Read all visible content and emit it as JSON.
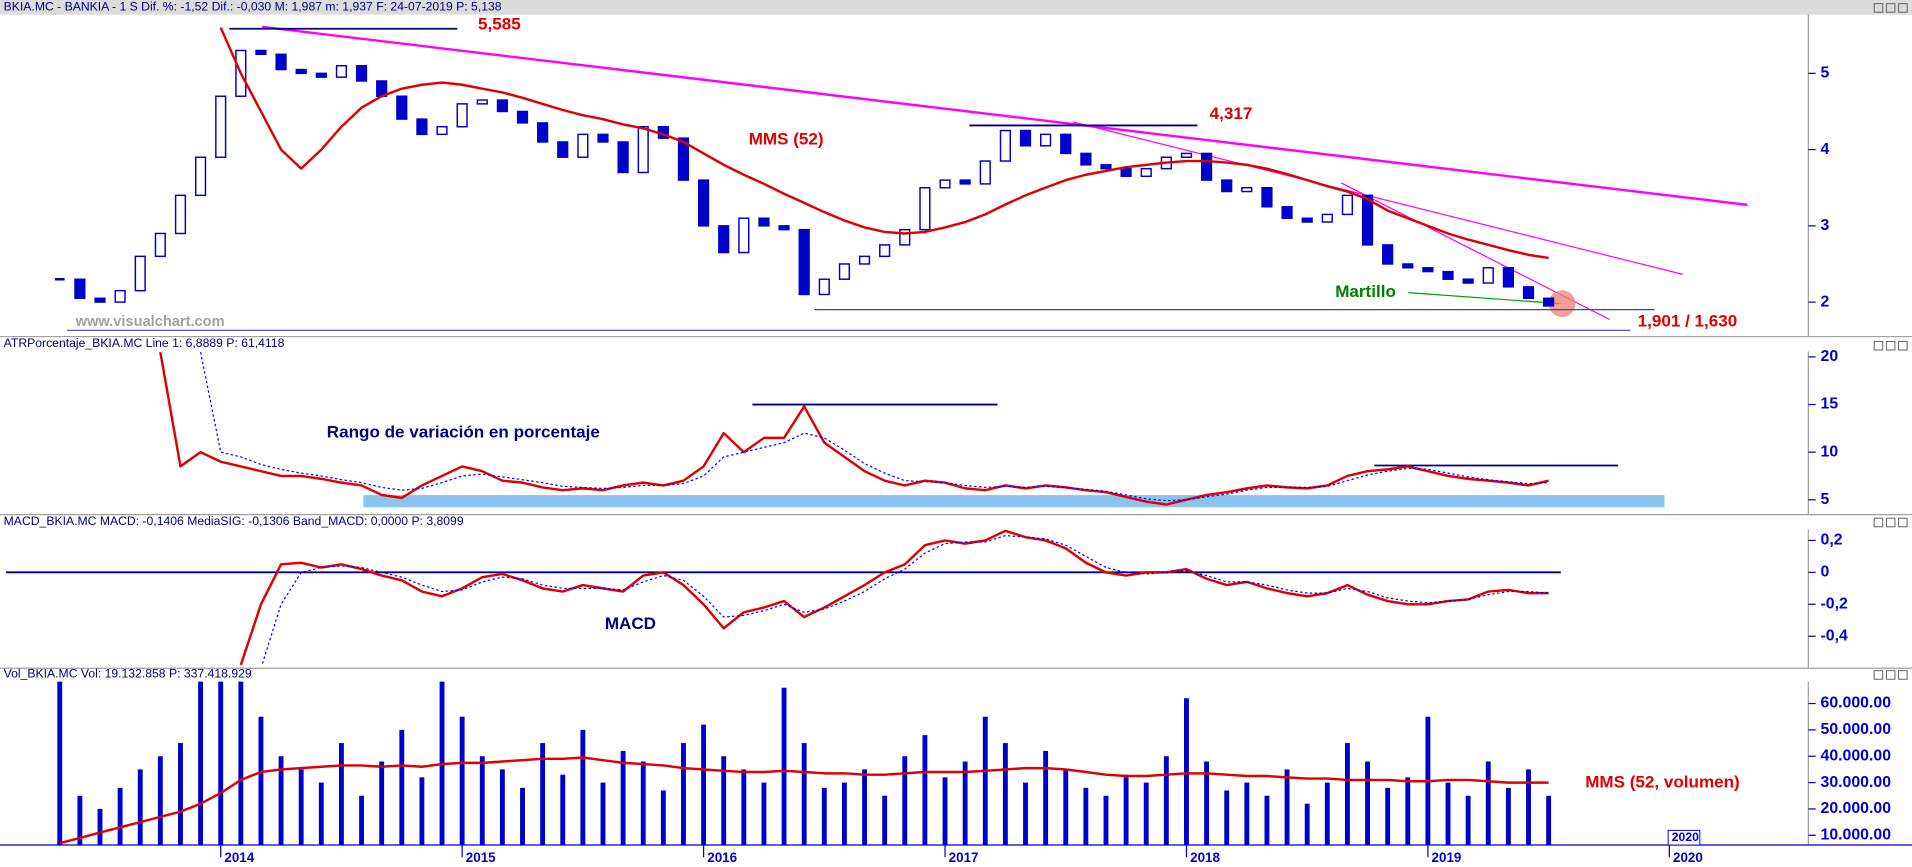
{
  "chart_data": [
    {
      "type": "candlestick",
      "header": "BKIA.MC - BANKIA - 1 S  Dif. %: -1,52  Dif.: -0,030  M: 1,987  m: 1,937  F: 24-07-2019  P: 5,138",
      "ylim": [
        1.58,
        5.77
      ],
      "yticks": [
        2,
        3,
        4,
        5
      ],
      "annotations": [
        "MMS (52)",
        "Martillo",
        "www.visualchart.com"
      ],
      "levels": [
        {
          "value": 5.585,
          "label": "5,585"
        },
        {
          "value": 4.317,
          "label": "4,317"
        }
      ],
      "support": [
        1.901,
        1.63
      ],
      "support_label": "1,901 / 1,630",
      "series": [
        {
          "type": "candlestick",
          "color": "#0000cc",
          "values": [
            2.3,
            2.05,
            2.0,
            2.15,
            2.6,
            2.9,
            3.4,
            3.9,
            4.7,
            5.3,
            5.25,
            5.05,
            5.0,
            4.95,
            5.1,
            4.9,
            4.7,
            4.4,
            4.2,
            4.3,
            4.6,
            4.65,
            4.5,
            4.35,
            4.1,
            3.9,
            4.2,
            4.1,
            3.7,
            4.3,
            4.15,
            3.6,
            3.0,
            2.65,
            3.1,
            3.0,
            2.95,
            2.1,
            2.3,
            2.5,
            2.6,
            2.75,
            2.95,
            3.5,
            3.6,
            3.55,
            3.85,
            4.25,
            4.05,
            4.2,
            3.95,
            3.8,
            3.75,
            3.65,
            3.75,
            3.9,
            3.95,
            3.6,
            3.45,
            3.5,
            3.25,
            3.1,
            3.05,
            3.15,
            3.4,
            2.75,
            2.5,
            2.45,
            2.4,
            2.3,
            2.25,
            2.45,
            2.2,
            2.05,
            1.95,
            null,
            null,
            null,
            null,
            null,
            null,
            null,
            null,
            null,
            null,
            null,
            null
          ]
        },
        {
          "type": "line",
          "color": "#e00000",
          "values": [
            null,
            null,
            null,
            null,
            null,
            null,
            null,
            null,
            5.6,
            5.0,
            4.5,
            4.0,
            3.75,
            4.0,
            4.3,
            4.55,
            4.7,
            4.8,
            4.85,
            4.88,
            4.85,
            4.8,
            4.75,
            4.68,
            4.6,
            4.52,
            4.45,
            4.4,
            4.33,
            4.28,
            4.2,
            4.1,
            3.95,
            3.8,
            3.67,
            3.55,
            3.42,
            3.3,
            3.18,
            3.07,
            2.98,
            2.92,
            2.9,
            2.92,
            2.98,
            3.05,
            3.15,
            3.28,
            3.4,
            3.5,
            3.6,
            3.67,
            3.72,
            3.77,
            3.8,
            3.83,
            3.85,
            3.85,
            3.83,
            3.8,
            3.75,
            3.68,
            3.6,
            3.52,
            3.45,
            3.35,
            3.2,
            3.1,
            3.0,
            2.9,
            2.82,
            2.75,
            2.68,
            2.62,
            2.58,
            null,
            null,
            null,
            null,
            null,
            null,
            null,
            null,
            null,
            null,
            null,
            null
          ]
        }
      ]
    },
    {
      "type": "line",
      "header": "ATRPorcentaje_BKIA.MC  Line 1: 6,8889  P: 61,4118",
      "ylim": [
        3.7,
        20.6
      ],
      "yticks": [
        5,
        10,
        15,
        20
      ],
      "annotations": [
        "Rango de variación en porcentaje"
      ],
      "levels": [
        15,
        8.6
      ],
      "series": [
        {
          "type": "line",
          "color": "#e00000",
          "values": [
            null,
            null,
            null,
            null,
            null,
            20.5,
            8.5,
            10,
            9,
            8.5,
            8,
            7.5,
            7.5,
            7.2,
            6.8,
            6.5,
            5.5,
            5.2,
            6.5,
            7.5,
            8.5,
            8,
            7,
            6.8,
            6.3,
            6,
            6.2,
            6,
            6.5,
            6.8,
            6.5,
            7,
            8.5,
            12,
            10,
            11.5,
            11.5,
            14.8,
            11,
            9.5,
            8,
            7,
            6.5,
            7,
            6.8,
            6.2,
            6,
            6.5,
            6.2,
            6.5,
            6.3,
            6,
            5.8,
            5.3,
            4.8,
            4.5,
            5,
            5.5,
            5.8,
            6.2,
            6.5,
            6.3,
            6.2,
            6.5,
            7.5,
            8,
            8.2,
            8.5,
            8,
            7.5,
            7.2,
            7,
            6.8,
            6.5,
            7,
            null,
            null,
            null,
            null,
            null,
            null,
            null,
            null,
            null,
            null,
            null,
            null
          ]
        },
        {
          "type": "line",
          "color": "#0000ff",
          "style": "dotted",
          "values": [
            null,
            null,
            null,
            null,
            null,
            null,
            null,
            20.5,
            10,
            9.5,
            8.7,
            8.2,
            7.8,
            7.5,
            7.1,
            6.8,
            6.3,
            6,
            6.2,
            6.8,
            7.5,
            7.7,
            7.4,
            7.1,
            6.8,
            6.4,
            6.3,
            6.2,
            6.3,
            6.5,
            6.5,
            6.7,
            7.5,
            9.5,
            10,
            10.5,
            11,
            12,
            11.5,
            10.2,
            8.8,
            7.8,
            7,
            6.9,
            6.8,
            6.5,
            6.3,
            6.4,
            6.3,
            6.4,
            6.3,
            6.1,
            5.9,
            5.5,
            5.1,
            4.9,
            5,
            5.3,
            5.6,
            6,
            6.3,
            6.3,
            6.3,
            6.4,
            7,
            7.6,
            8,
            8.3,
            8.2,
            7.8,
            7.4,
            7.1,
            6.9,
            6.7,
            6.8,
            null,
            null,
            null,
            null,
            null,
            null,
            null,
            null,
            null,
            null,
            null,
            null
          ]
        }
      ]
    },
    {
      "type": "line",
      "header": "MACD_BKIA.MC  MACD: -0,1406  MediaSIG: -0,1306  Band_MACD: 0,0000  P: 3,8099",
      "ylim": [
        -0.585,
        0.27
      ],
      "yticks": [
        {
          "value": 0.2,
          "label": "0,2"
        },
        0,
        {
          "value": -0.2,
          "label": "-0,2"
        },
        {
          "value": -0.4,
          "label": "-0,4"
        }
      ],
      "annotations": [
        "MACD"
      ],
      "levels": [
        0
      ],
      "series": [
        {
          "type": "line",
          "color": "#e00000",
          "values": [
            null,
            null,
            null,
            null,
            null,
            null,
            null,
            null,
            null,
            -0.58,
            -0.2,
            0.05,
            0.06,
            0.03,
            0.05,
            0.02,
            -0.02,
            -0.05,
            -0.12,
            -0.15,
            -0.1,
            -0.03,
            -0.01,
            -0.05,
            -0.1,
            -0.12,
            -0.08,
            -0.1,
            -0.12,
            -0.02,
            0,
            -0.08,
            -0.2,
            -0.35,
            -0.25,
            -0.22,
            -0.18,
            -0.28,
            -0.22,
            -0.15,
            -0.08,
            0,
            0.05,
            0.17,
            0.2,
            0.18,
            0.2,
            0.26,
            0.22,
            0.2,
            0.15,
            0.06,
            0,
            -0.02,
            0,
            0,
            0.02,
            -0.04,
            -0.08,
            -0.06,
            -0.1,
            -0.13,
            -0.15,
            -0.13,
            -0.08,
            -0.14,
            -0.18,
            -0.2,
            -0.2,
            -0.18,
            -0.17,
            -0.12,
            -0.11,
            -0.13,
            -0.13,
            null,
            null,
            null,
            null,
            null,
            null,
            null,
            null,
            null,
            null,
            null,
            null
          ]
        },
        {
          "type": "line",
          "color": "#0000ff",
          "style": "dotted",
          "values": [
            null,
            null,
            null,
            null,
            null,
            null,
            null,
            null,
            null,
            null,
            -0.6,
            -0.2,
            0,
            0.03,
            0.04,
            0.03,
            0,
            -0.03,
            -0.08,
            -0.12,
            -0.11,
            -0.06,
            -0.03,
            -0.04,
            -0.08,
            -0.1,
            -0.1,
            -0.1,
            -0.11,
            -0.06,
            -0.02,
            -0.05,
            -0.15,
            -0.28,
            -0.27,
            -0.24,
            -0.2,
            -0.25,
            -0.23,
            -0.18,
            -0.12,
            -0.04,
            0.02,
            0.12,
            0.18,
            0.19,
            0.19,
            0.23,
            0.22,
            0.21,
            0.17,
            0.1,
            0.03,
            0,
            -0.01,
            0,
            0.01,
            -0.02,
            -0.06,
            -0.06,
            -0.08,
            -0.11,
            -0.13,
            -0.13,
            -0.1,
            -0.12,
            -0.16,
            -0.18,
            -0.19,
            -0.18,
            -0.17,
            -0.14,
            -0.12,
            -0.12,
            -0.13,
            null,
            null,
            null,
            null,
            null,
            null,
            null,
            null,
            null,
            null,
            null,
            null
          ]
        }
      ]
    },
    {
      "type": "bar",
      "header": "Vol_BKIA.MC  Vol: 19.132.858  P: 337.418.929",
      "ylim": [
        6300000,
        68300000
      ],
      "yticks": [
        {
          "value": 10000000,
          "label": "10.000.00"
        },
        {
          "value": 20000000,
          "label": "20.000.00"
        },
        {
          "value": 30000000,
          "label": "30.000.00"
        },
        {
          "value": 40000000,
          "label": "40.000.00"
        },
        {
          "value": 50000000,
          "label": "50.000.00"
        },
        {
          "value": 60000000,
          "label": "60.000.00"
        }
      ],
      "annotations": [
        "MMS (52, volumen)"
      ],
      "cursor_label": "2020",
      "categories": [
        null,
        null,
        null,
        null,
        null,
        null,
        null,
        null,
        "2014",
        null,
        null,
        null,
        null,
        null,
        null,
        null,
        null,
        null,
        null,
        null,
        "2015",
        null,
        null,
        null,
        null,
        null,
        null,
        null,
        null,
        null,
        null,
        null,
        "2016",
        null,
        null,
        null,
        null,
        null,
        null,
        null,
        null,
        null,
        null,
        null,
        "2017",
        null,
        null,
        null,
        null,
        null,
        null,
        null,
        null,
        null,
        null,
        null,
        "2018",
        null,
        null,
        null,
        null,
        null,
        null,
        null,
        null,
        null,
        null,
        null,
        "2019",
        null,
        null,
        null,
        null,
        null,
        null,
        null,
        null,
        null,
        null,
        null,
        "2020",
        null,
        null,
        null,
        null,
        null,
        null
      ],
      "series": [
        {
          "type": "bar",
          "color": "#0000cc",
          "values": [
            70000000,
            25000000,
            20000000,
            28000000,
            35000000,
            40000000,
            45000000,
            70000000,
            70000000,
            70000000,
            55000000,
            40000000,
            35000000,
            30000000,
            45000000,
            25000000,
            38000000,
            50000000,
            32000000,
            70000000,
            55000000,
            40000000,
            35000000,
            28000000,
            45000000,
            33000000,
            50000000,
            30000000,
            42000000,
            38000000,
            27000000,
            45000000,
            52000000,
            40000000,
            35000000,
            30000000,
            66000000,
            45000000,
            28000000,
            30000000,
            35000000,
            25000000,
            40000000,
            48000000,
            32000000,
            38000000,
            55000000,
            45000000,
            30000000,
            42000000,
            35000000,
            28000000,
            25000000,
            33000000,
            30000000,
            40000000,
            62000000,
            38000000,
            27000000,
            30000000,
            25000000,
            35000000,
            22000000,
            30000000,
            45000000,
            38000000,
            28000000,
            32000000,
            55000000,
            30000000,
            25000000,
            38000000,
            28000000,
            35000000,
            25000000,
            null,
            null,
            null,
            null,
            null,
            null,
            null,
            null,
            null,
            null,
            null,
            null
          ]
        },
        {
          "type": "line",
          "color": "#e00000",
          "values": [
            7000000,
            9000000,
            11000000,
            13000000,
            15000000,
            17000000,
            19000000,
            22000000,
            26000000,
            31000000,
            34000000,
            35000000,
            35500000,
            36000000,
            36500000,
            36500000,
            36000000,
            36500000,
            36000000,
            37000000,
            37500000,
            37500000,
            38000000,
            38500000,
            39000000,
            39000000,
            39500000,
            38500000,
            37500000,
            37000000,
            36500000,
            35500000,
            35000000,
            34500000,
            34000000,
            34000000,
            34500000,
            34000000,
            33500000,
            33500000,
            33000000,
            33000000,
            33500000,
            34000000,
            34000000,
            34000000,
            34500000,
            35000000,
            35500000,
            35500000,
            35000000,
            34000000,
            33000000,
            32500000,
            32500000,
            33000000,
            33500000,
            33500000,
            33000000,
            32500000,
            32500000,
            32000000,
            31500000,
            31500000,
            31000000,
            31000000,
            31000000,
            30500000,
            30500000,
            31000000,
            31000000,
            30500000,
            30000000,
            30000000,
            30000000,
            null,
            null,
            null,
            null,
            null,
            null,
            null,
            null,
            null,
            null,
            null,
            null
          ]
        }
      ]
    }
  ]
}
